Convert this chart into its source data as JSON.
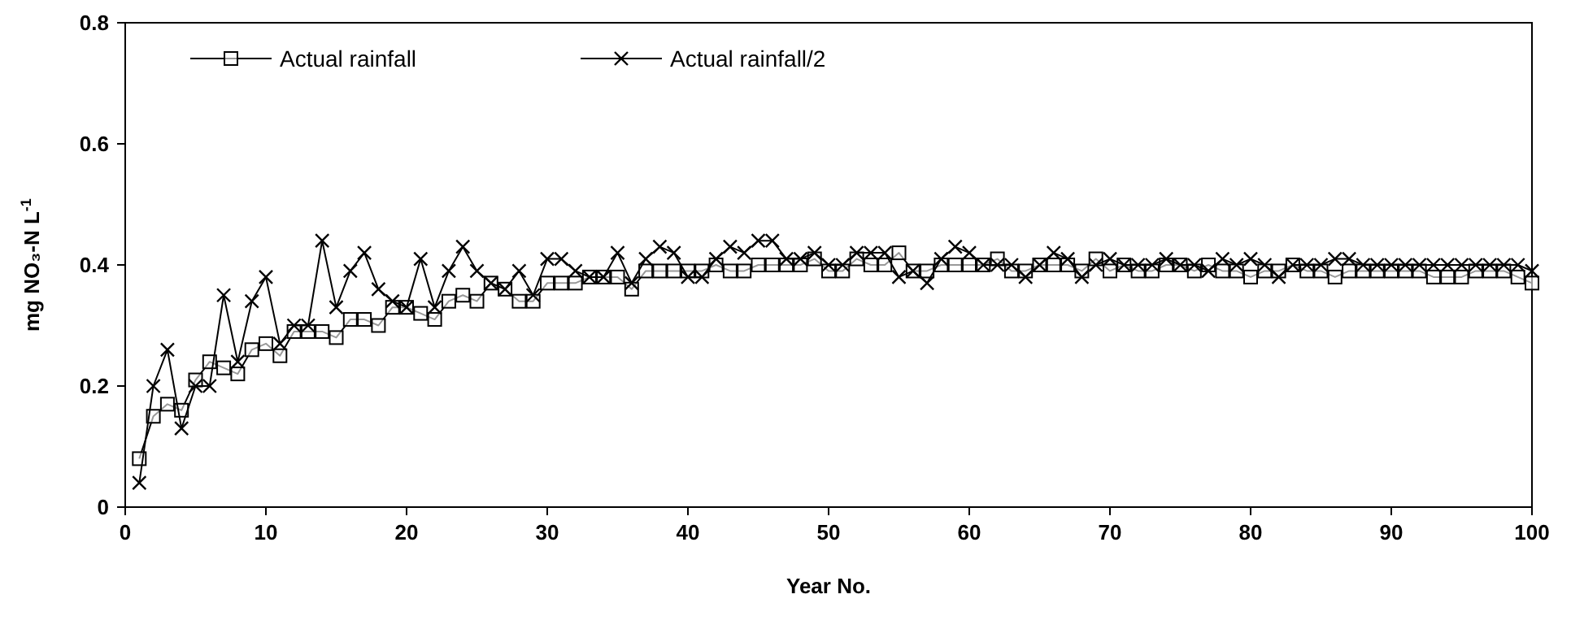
{
  "chart_data": {
    "type": "line",
    "xlabel": "Year No.",
    "ylabel": "mg NO₃-N  L$^{-1}$",
    "x": [
      1,
      2,
      3,
      4,
      5,
      6,
      7,
      8,
      9,
      10,
      11,
      12,
      13,
      14,
      15,
      16,
      17,
      18,
      19,
      20,
      21,
      22,
      23,
      24,
      25,
      26,
      27,
      28,
      29,
      30,
      31,
      32,
      33,
      34,
      35,
      36,
      37,
      38,
      39,
      40,
      41,
      42,
      43,
      44,
      45,
      46,
      47,
      48,
      49,
      50,
      51,
      52,
      53,
      54,
      55,
      56,
      57,
      58,
      59,
      60,
      61,
      62,
      63,
      64,
      65,
      66,
      67,
      68,
      69,
      70,
      71,
      72,
      73,
      74,
      75,
      76,
      77,
      78,
      79,
      80,
      81,
      82,
      83,
      84,
      85,
      86,
      87,
      88,
      89,
      90,
      91,
      92,
      93,
      94,
      95,
      96,
      97,
      98,
      99,
      100
    ],
    "xlim": [
      0,
      100
    ],
    "xticks": [
      0,
      10,
      20,
      30,
      40,
      50,
      60,
      70,
      80,
      90,
      100
    ],
    "ylim": [
      0,
      0.8
    ],
    "yticks": [
      0,
      0.2,
      0.4,
      0.6,
      0.8
    ],
    "grid": false,
    "legend": "top left",
    "series": [
      {
        "name": "Actual rainfall",
        "color": "#000000",
        "marker": "square",
        "values": [
          0.08,
          0.15,
          0.17,
          0.16,
          0.21,
          0.24,
          0.23,
          0.22,
          0.26,
          0.27,
          0.25,
          0.29,
          0.29,
          0.29,
          0.28,
          0.31,
          0.31,
          0.3,
          0.33,
          0.33,
          0.32,
          0.31,
          0.34,
          0.35,
          0.34,
          0.37,
          0.36,
          0.34,
          0.34,
          0.37,
          0.37,
          0.37,
          0.38,
          0.38,
          0.38,
          0.36,
          0.39,
          0.39,
          0.39,
          0.39,
          0.39,
          0.4,
          0.39,
          0.39,
          0.4,
          0.4,
          0.4,
          0.4,
          0.41,
          0.39,
          0.39,
          0.41,
          0.4,
          0.4,
          0.42,
          0.39,
          0.39,
          0.4,
          0.4,
          0.4,
          0.4,
          0.41,
          0.39,
          0.39,
          0.4,
          0.4,
          0.4,
          0.39,
          0.41,
          0.39,
          0.4,
          0.39,
          0.39,
          0.4,
          0.4,
          0.39,
          0.4,
          0.39,
          0.39,
          0.38,
          0.39,
          0.39,
          0.4,
          0.39,
          0.39,
          0.38,
          0.39,
          0.39,
          0.39,
          0.39,
          0.39,
          0.39,
          0.38,
          0.38,
          0.38,
          0.39,
          0.39,
          0.39,
          0.38,
          0.37
        ]
      },
      {
        "name": "Actual rainfall/2",
        "color": "#000000",
        "marker": "cross",
        "values": [
          0.04,
          0.2,
          0.26,
          0.13,
          0.2,
          0.2,
          0.35,
          0.24,
          0.34,
          0.38,
          0.27,
          0.3,
          0.3,
          0.44,
          0.33,
          0.39,
          0.42,
          0.36,
          0.34,
          0.33,
          0.41,
          0.33,
          0.39,
          0.43,
          0.39,
          0.37,
          0.36,
          0.39,
          0.35,
          0.41,
          0.41,
          0.39,
          0.38,
          0.38,
          0.42,
          0.37,
          0.41,
          0.43,
          0.42,
          0.38,
          0.38,
          0.41,
          0.43,
          0.42,
          0.44,
          0.44,
          0.41,
          0.41,
          0.42,
          0.4,
          0.4,
          0.42,
          0.42,
          0.42,
          0.38,
          0.39,
          0.37,
          0.41,
          0.43,
          0.42,
          0.4,
          0.4,
          0.4,
          0.38,
          0.4,
          0.42,
          0.41,
          0.38,
          0.4,
          0.41,
          0.4,
          0.4,
          0.4,
          0.41,
          0.4,
          0.4,
          0.39,
          0.41,
          0.4,
          0.41,
          0.4,
          0.38,
          0.4,
          0.4,
          0.4,
          0.41,
          0.41,
          0.4,
          0.4,
          0.4,
          0.4,
          0.4,
          0.4,
          0.4,
          0.4,
          0.4,
          0.4,
          0.4,
          0.4,
          0.39
        ]
      }
    ]
  }
}
